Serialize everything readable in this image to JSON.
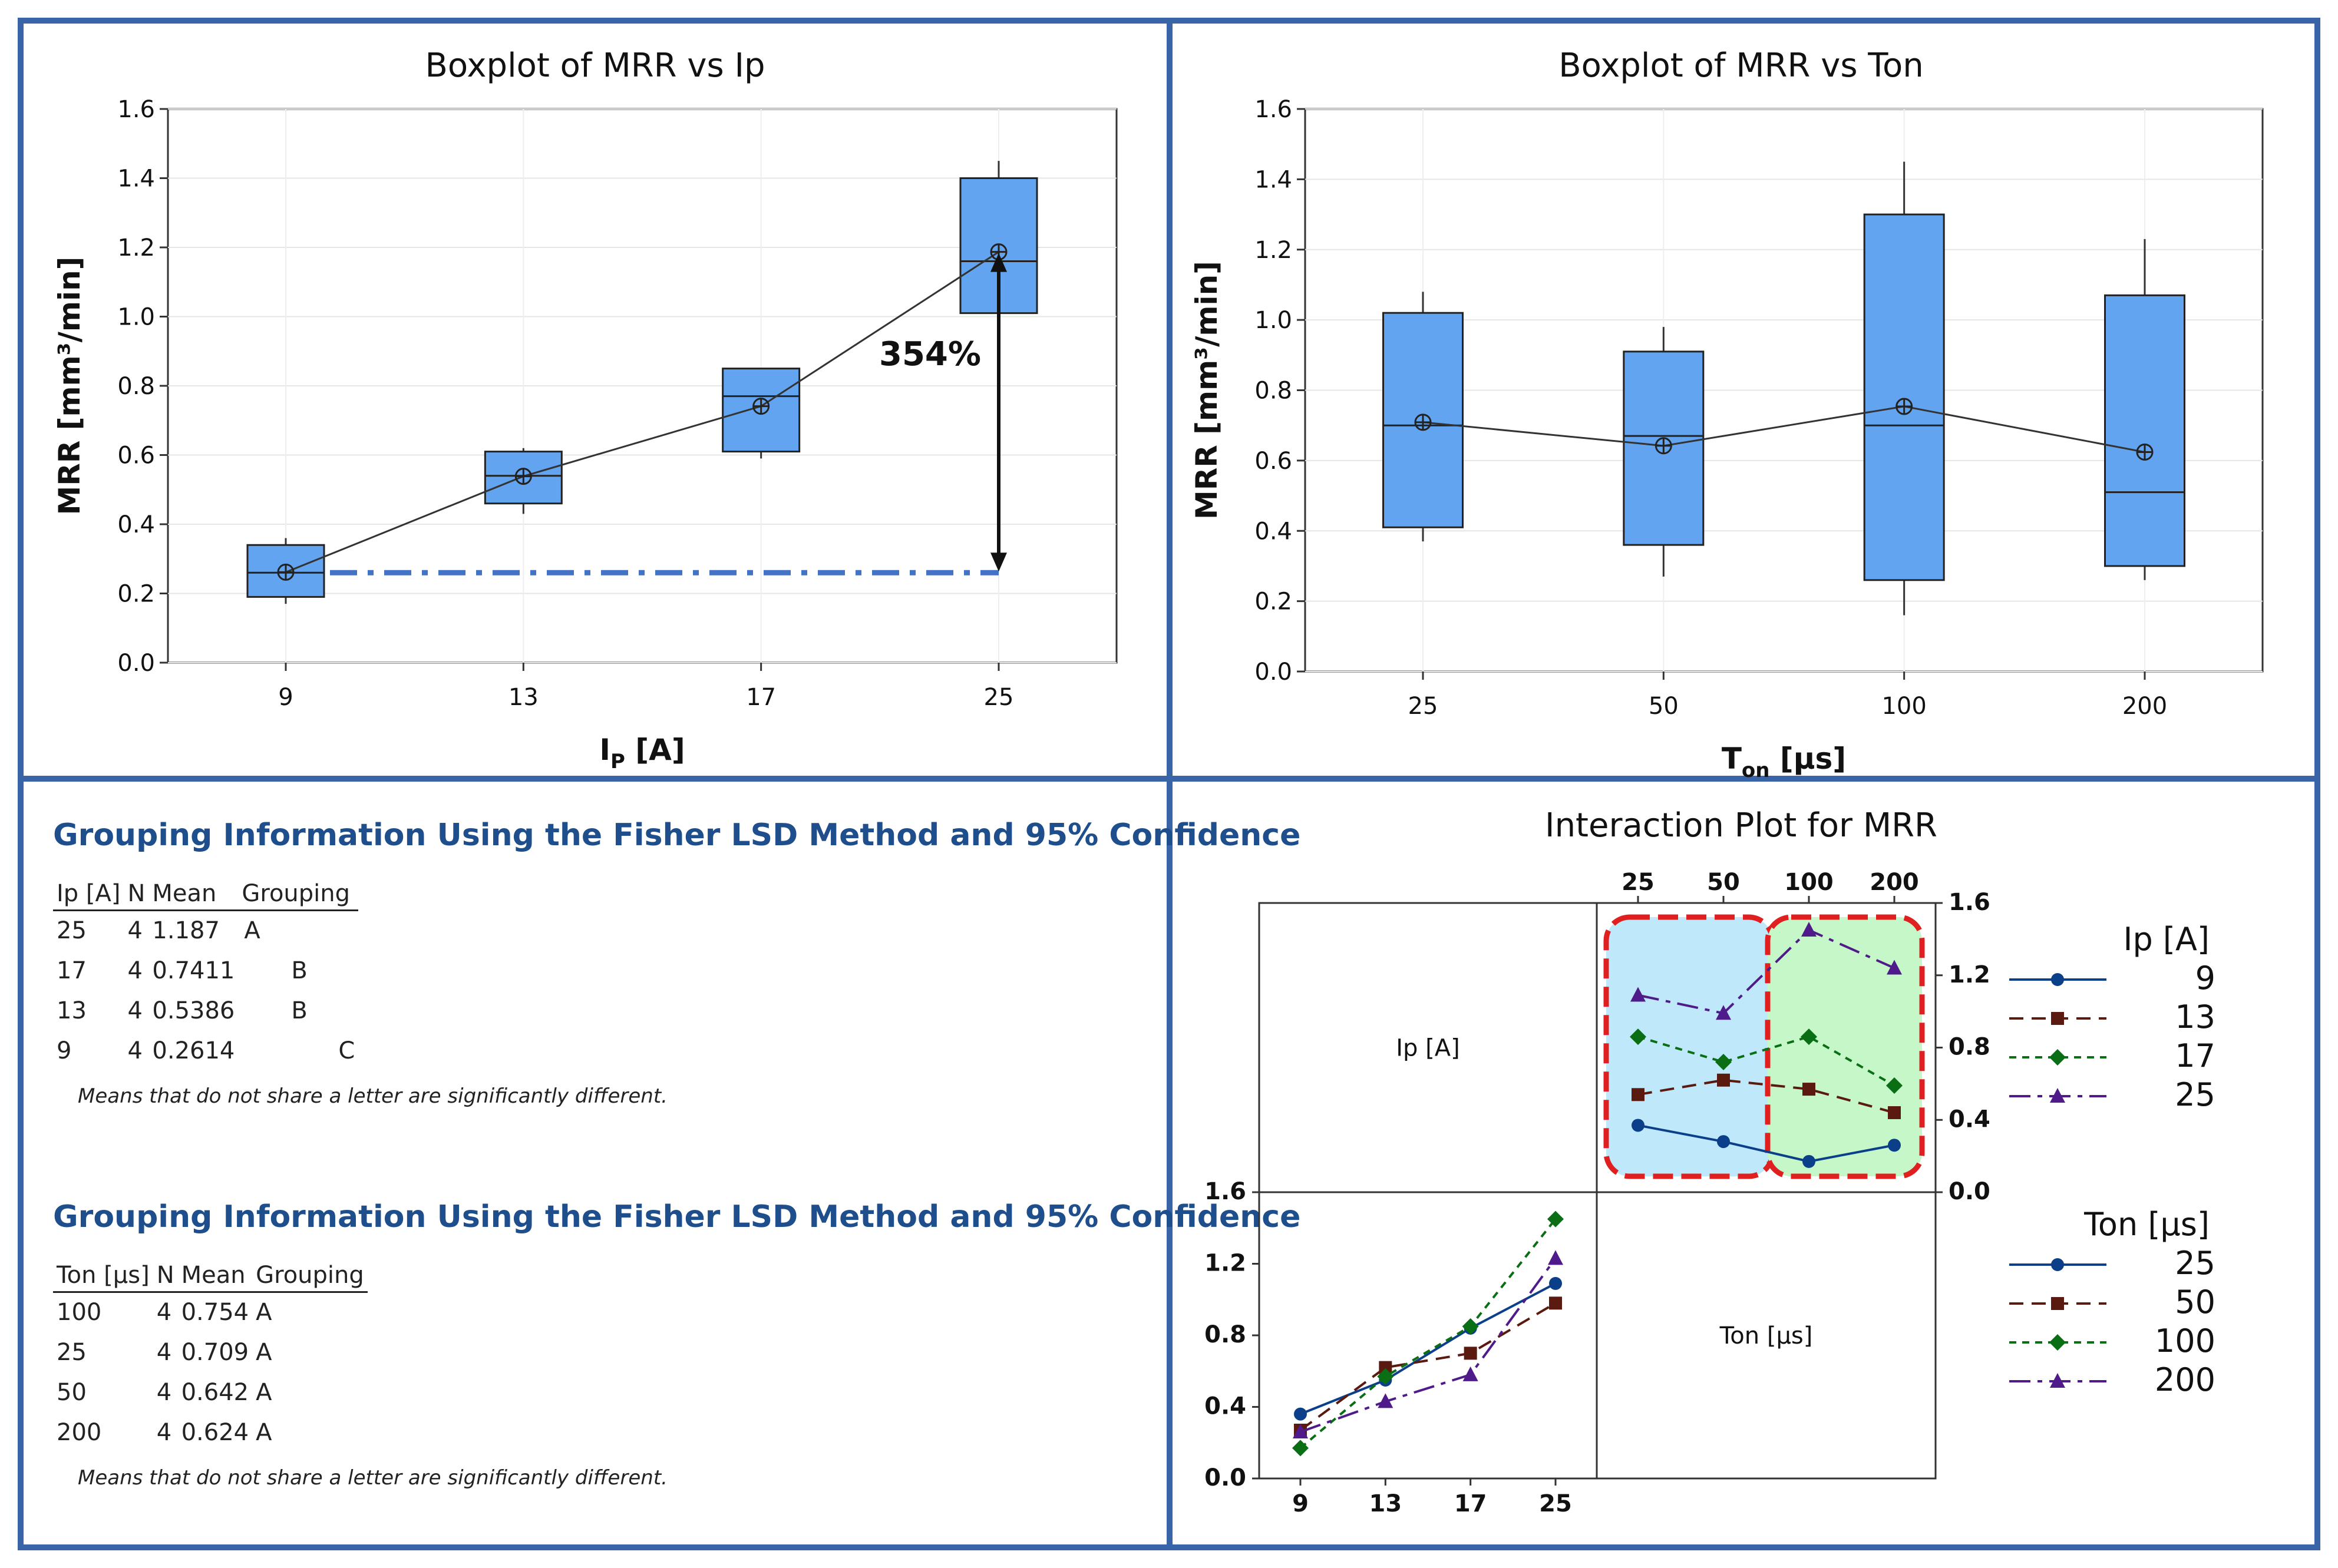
{
  "colors": {
    "box_fill": "#62a4f0",
    "frame": "#3a64a8",
    "ref_line": "#4472c4",
    "title_blue": "#1f4e8c"
  },
  "chart_data": [
    {
      "type": "boxplot",
      "title": "Boxplot of MRR vs Ip",
      "ylabel": "MRR [mm³/min]",
      "xlabel": "I",
      "xlabel_sub": "P",
      "xlabel_suffix": " [A]",
      "categories": [
        "9",
        "13",
        "17",
        "25"
      ],
      "ylim": [
        0,
        1.6
      ],
      "yticks": [
        "0.0",
        "0.2",
        "0.4",
        "0.6",
        "0.8",
        "1.0",
        "1.2",
        "1.4",
        "1.6"
      ],
      "boxes": [
        {
          "min": 0.17,
          "q1": 0.19,
          "median": 0.26,
          "q3": 0.34,
          "max": 0.36,
          "mean": 0.2614
        },
        {
          "min": 0.43,
          "q1": 0.46,
          "median": 0.54,
          "q3": 0.61,
          "max": 0.62,
          "mean": 0.5386
        },
        {
          "min": 0.59,
          "q1": 0.61,
          "median": 0.77,
          "q3": 0.85,
          "max": 0.85,
          "mean": 0.7411
        },
        {
          "min": 1.01,
          "q1": 1.01,
          "median": 1.16,
          "q3": 1.4,
          "max": 1.45,
          "mean": 1.187
        }
      ],
      "annotation": "354%",
      "reference_value": 0.26
    },
    {
      "type": "boxplot",
      "title": "Boxplot of MRR vs Ton",
      "ylabel": "MRR [mm³/min]",
      "xlabel": "T",
      "xlabel_sub": "on",
      "xlabel_suffix": " [µs]",
      "categories": [
        "25",
        "50",
        "100",
        "200"
      ],
      "ylim": [
        0,
        1.6
      ],
      "yticks": [
        "0.0",
        "0.2",
        "0.4",
        "0.6",
        "0.8",
        "1.0",
        "1.2",
        "1.4",
        "1.6"
      ],
      "boxes": [
        {
          "min": 0.37,
          "q1": 0.41,
          "median": 0.7,
          "q3": 1.02,
          "max": 1.08,
          "mean": 0.709
        },
        {
          "min": 0.27,
          "q1": 0.36,
          "median": 0.67,
          "q3": 0.91,
          "max": 0.98,
          "mean": 0.642
        },
        {
          "min": 0.16,
          "q1": 0.26,
          "median": 0.7,
          "q3": 1.3,
          "max": 1.45,
          "mean": 0.754
        },
        {
          "min": 0.26,
          "q1": 0.3,
          "median": 0.51,
          "q3": 1.07,
          "max": 1.23,
          "mean": 0.624
        }
      ]
    },
    {
      "type": "line",
      "title": "Interaction Plot for MRR",
      "diag_labels": [
        "Ip [A]",
        "Ton [µs]"
      ],
      "top_x_ticks": [
        "25",
        "50",
        "100",
        "200"
      ],
      "bottom_x_ticks": [
        "9",
        "13",
        "17",
        "25"
      ],
      "yticks": [
        "0.0",
        "0.4",
        "0.8",
        "1.2",
        "1.6"
      ],
      "ylim": [
        0,
        1.6
      ],
      "upper_right": {
        "x": [
          "25",
          "50",
          "100",
          "200"
        ],
        "series": [
          {
            "name": "9",
            "values": [
              0.37,
              0.28,
              0.17,
              0.26
            ]
          },
          {
            "name": "13",
            "values": [
              0.54,
              0.62,
              0.57,
              0.44
            ]
          },
          {
            "name": "17",
            "values": [
              0.86,
              0.72,
              0.86,
              0.59
            ]
          },
          {
            "name": "25",
            "values": [
              1.09,
              0.99,
              1.45,
              1.24
            ]
          }
        ]
      },
      "lower_left": {
        "x": [
          "9",
          "13",
          "17",
          "25"
        ],
        "series": [
          {
            "name": "25",
            "values": [
              0.36,
              0.55,
              0.84,
              1.09
            ]
          },
          {
            "name": "50",
            "values": [
              0.27,
              0.62,
              0.7,
              0.98
            ]
          },
          {
            "name": "100",
            "values": [
              0.17,
              0.57,
              0.85,
              1.45
            ]
          },
          {
            "name": "200",
            "values": [
              0.26,
              0.43,
              0.58,
              1.23
            ]
          }
        ]
      },
      "legend_ip": {
        "title": "Ip [A]",
        "items": [
          "9",
          "13",
          "17",
          "25"
        ]
      },
      "legend_ton": {
        "title": "Ton [µs]",
        "items": [
          "25",
          "50",
          "100",
          "200"
        ]
      }
    }
  ],
  "grouping_ip": {
    "title": "Grouping Information Using the Fisher LSD Method and 95% Confidence",
    "headers": [
      "Ip [A]",
      "N",
      "Mean",
      "Grouping"
    ],
    "rows": [
      [
        "25",
        "4",
        "1.187",
        "A"
      ],
      [
        "17",
        "4",
        "0.7411",
        "B"
      ],
      [
        "13",
        "4",
        "0.5386",
        "B"
      ],
      [
        "9",
        "4",
        "0.2614",
        "C"
      ]
    ],
    "note": "Means that do not share a letter are significantly different."
  },
  "grouping_ton": {
    "title": "Grouping Information Using the Fisher LSD Method and 95% Confidence",
    "headers": [
      "Ton [µs]",
      "N",
      "Mean",
      "Grouping"
    ],
    "rows": [
      [
        "100",
        "4",
        "0.754",
        "A"
      ],
      [
        "25",
        "4",
        "0.709",
        "A"
      ],
      [
        "50",
        "4",
        "0.642",
        "A"
      ],
      [
        "200",
        "4",
        "0.624",
        "A"
      ]
    ],
    "note": "Means that do not share a letter are significantly different."
  }
}
